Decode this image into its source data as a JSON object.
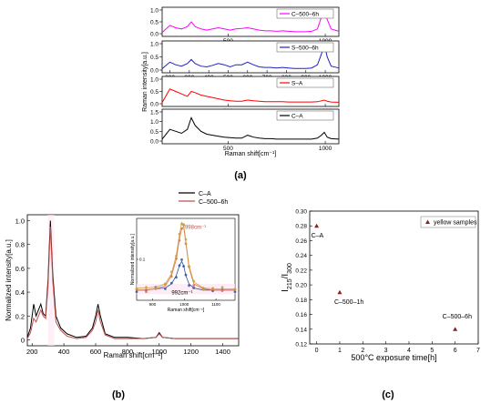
{
  "chart_data": [
    {
      "id": "a",
      "panel_label": "(a)",
      "type": "line",
      "xlabel": "Raman shift[cm⁻¹]",
      "ylabel": "Raman intensity[a.u.]",
      "xlim": [
        160,
        1070
      ],
      "stacked": true,
      "x": [
        160,
        200,
        230,
        260,
        290,
        310,
        330,
        360,
        390,
        420,
        450,
        480,
        510,
        540,
        570,
        600,
        630,
        660,
        690,
        720,
        750,
        780,
        810,
        840,
        870,
        900,
        930,
        960,
        980,
        995,
        1010,
        1030,
        1070
      ],
      "series": [
        {
          "name": "C–500–6h",
          "color": "#ff00ff",
          "ylim": [
            0,
            1.0
          ],
          "yticks": [
            0,
            0.5,
            1.0
          ],
          "xticks": [
            500,
            1000
          ],
          "values": [
            0.05,
            0.35,
            0.25,
            0.2,
            0.3,
            0.5,
            0.3,
            0.2,
            0.15,
            0.2,
            0.25,
            0.2,
            0.15,
            0.2,
            0.22,
            0.25,
            0.2,
            0.15,
            0.12,
            0.12,
            0.1,
            0.12,
            0.1,
            0.08,
            0.08,
            0.08,
            0.1,
            0.2,
            0.7,
            1.0,
            0.6,
            0.2,
            0.1
          ]
        },
        {
          "name": "S–500–6h",
          "color": "#2020c0",
          "ylim": [
            0,
            1.0
          ],
          "yticks": [
            0,
            0.5,
            1.0
          ],
          "xticks": [
            200,
            300,
            400,
            500,
            600,
            700,
            800,
            900,
            1000
          ],
          "values": [
            0.05,
            0.3,
            0.2,
            0.15,
            0.25,
            0.4,
            0.25,
            0.15,
            0.12,
            0.18,
            0.25,
            0.2,
            0.12,
            0.2,
            0.2,
            0.3,
            0.2,
            0.12,
            0.1,
            0.1,
            0.08,
            0.1,
            0.08,
            0.06,
            0.06,
            0.06,
            0.08,
            0.2,
            0.6,
            1.0,
            0.5,
            0.15,
            0.08
          ]
        },
        {
          "name": "S–A",
          "color": "#ff0000",
          "ylim": [
            0,
            1.0
          ],
          "yticks": [
            0,
            0.5,
            1.0
          ],
          "xticks": [
            500,
            1000
          ],
          "values": [
            0.05,
            0.6,
            0.5,
            0.4,
            0.3,
            0.5,
            0.45,
            0.35,
            0.3,
            0.25,
            0.2,
            0.15,
            0.12,
            0.1,
            0.1,
            0.15,
            0.12,
            0.1,
            0.08,
            0.08,
            0.08,
            0.08,
            0.07,
            0.07,
            0.07,
            0.07,
            0.07,
            0.08,
            0.12,
            0.15,
            0.1,
            0.07,
            0.06
          ]
        },
        {
          "name": "C–A",
          "color": "#000000",
          "ylim": [
            0,
            1.5
          ],
          "yticks": [
            0,
            0.5,
            1.0,
            1.5
          ],
          "xticks": [
            500,
            1000
          ],
          "values": [
            0.1,
            0.6,
            0.5,
            0.4,
            0.6,
            1.2,
            0.8,
            0.5,
            0.35,
            0.3,
            0.25,
            0.2,
            0.18,
            0.15,
            0.15,
            0.3,
            0.2,
            0.15,
            0.12,
            0.12,
            0.1,
            0.1,
            0.1,
            0.1,
            0.1,
            0.1,
            0.1,
            0.15,
            0.3,
            0.45,
            0.2,
            0.12,
            0.1
          ]
        }
      ]
    },
    {
      "id": "b",
      "panel_label": "(b)",
      "type": "line",
      "xlabel": "Raman shift[cm⁻¹]",
      "ylabel": "Normalized intensity[a.u.]",
      "xlim": [
        170,
        1500
      ],
      "ylim": [
        -0.05,
        1.05
      ],
      "xticks": [
        200,
        400,
        600,
        800,
        1000,
        1200,
        1400
      ],
      "yticks": [
        0,
        0.2,
        0.4,
        0.6,
        0.8,
        1.0
      ],
      "ytick_labels": [
        "0",
        "0.2",
        "0.4",
        "0.6",
        "0.8",
        "1.0"
      ],
      "legend": "top-center",
      "x": [
        170,
        190,
        210,
        225,
        240,
        255,
        270,
        285,
        300,
        315,
        330,
        350,
        380,
        420,
        480,
        540,
        580,
        600,
        615,
        630,
        660,
        720,
        800,
        900,
        980,
        1000,
        1020,
        1100,
        1200,
        1300,
        1400,
        1500
      ],
      "series": [
        {
          "name": "C–A",
          "color": "#000000",
          "values": [
            0.02,
            0.1,
            0.3,
            0.2,
            0.25,
            0.3,
            0.22,
            0.2,
            0.5,
            1.0,
            0.55,
            0.2,
            0.1,
            0.05,
            0.02,
            0.03,
            0.1,
            0.2,
            0.3,
            0.2,
            0.05,
            0.02,
            0.02,
            0.01,
            0.02,
            0.06,
            0.02,
            0.01,
            0.01,
            0.01,
            0.01,
            0.01
          ]
        },
        {
          "name": "C–500–6h",
          "color": "#c0504d",
          "values": [
            0.01,
            0.06,
            0.18,
            0.15,
            0.2,
            0.25,
            0.2,
            0.18,
            0.45,
            0.95,
            0.5,
            0.15,
            0.08,
            0.03,
            0.01,
            0.02,
            0.08,
            0.15,
            0.25,
            0.15,
            0.04,
            0.01,
            0.01,
            0.01,
            0.02,
            0.05,
            0.02,
            0.01,
            0.01,
            0.01,
            0.01,
            0.01
          ]
        }
      ],
      "inset": {
        "xlabel": "Raman shift[cm⁻¹]",
        "ylabel": "Normalized intensity[a.u.]",
        "xlim": [
          850,
          1160
        ],
        "ylim": [
          0,
          0.2
        ],
        "xticks": [
          900,
          1000,
          1100
        ],
        "yticks": [
          0.1
        ],
        "ytick_labels": [
          "0.1"
        ],
        "annotations": [
          {
            "text": "998cm⁻¹",
            "x": 1002,
            "y": 0.175,
            "color": "#c0504d"
          },
          {
            "text": "992cm⁻¹",
            "x": 960,
            "y": 0.015,
            "color": "#000000"
          }
        ],
        "x": [
          850,
          880,
          910,
          940,
          960,
          975,
          985,
          992,
          998,
          1005,
          1015,
          1030,
          1060,
          1090,
          1120,
          1160
        ],
        "series": [
          {
            "name": "C–A",
            "color": "#3050a0",
            "values": [
              0.025,
              0.025,
              0.028,
              0.03,
              0.04,
              0.06,
              0.085,
              0.095,
              0.085,
              0.06,
              0.04,
              0.03,
              0.025,
              0.025,
              0.025,
              0.025
            ]
          },
          {
            "name": "C–500–6h",
            "color": "#e07050",
            "values": [
              0.025,
              0.025,
              0.028,
              0.035,
              0.06,
              0.1,
              0.15,
              0.175,
              0.18,
              0.14,
              0.08,
              0.04,
              0.028,
              0.025,
              0.025,
              0.025
            ]
          },
          {
            "name": "C–500–6h",
            "color": "#c8a040",
            "values": [
              0.03,
              0.03,
              0.032,
              0.04,
              0.065,
              0.11,
              0.16,
              0.19,
              0.185,
              0.145,
              0.085,
              0.045,
              0.03,
              0.028,
              0.028,
              0.028
            ]
          }
        ]
      }
    },
    {
      "id": "c",
      "panel_label": "(c)",
      "type": "scatter",
      "xlabel": "500°C exposure time[h]",
      "ylabel_main": "I",
      "ylabel_sub1": "215",
      "ylabel_sep": "/I",
      "ylabel_sub2": "300",
      "xlim": [
        -0.3,
        7
      ],
      "ylim": [
        0.12,
        0.3
      ],
      "xticks": [
        0,
        1,
        2,
        3,
        4,
        5,
        6,
        7
      ],
      "yticks": [
        0.12,
        0.14,
        0.16,
        0.18,
        0.2,
        0.22,
        0.24,
        0.26,
        0.28,
        0.3
      ],
      "legend": "top-right",
      "series": [
        {
          "name": "yellow samples",
          "color": "#8b2020",
          "points": [
            {
              "x": 0,
              "y": 0.28,
              "label": "C–A"
            },
            {
              "x": 1,
              "y": 0.19,
              "label": "C–500–1h"
            },
            {
              "x": 6,
              "y": 0.14,
              "label": "C–500–6h"
            }
          ]
        }
      ]
    }
  ]
}
